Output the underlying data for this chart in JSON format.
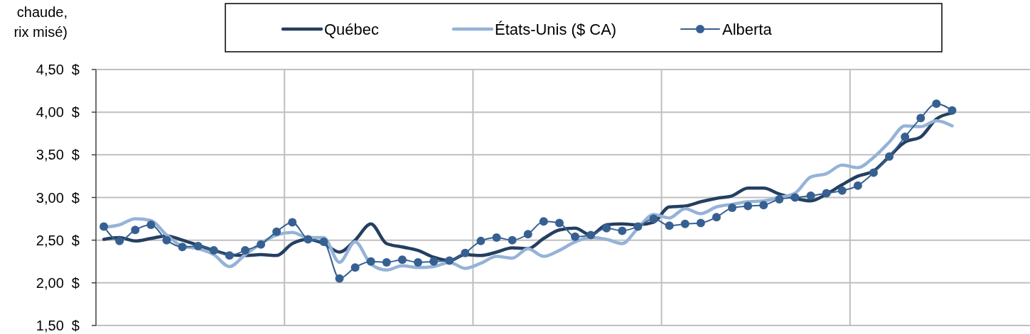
{
  "chart_data": {
    "type": "line",
    "annotations": [
      "chaude,",
      "rix misé)"
    ],
    "categories": [
      null,
      null,
      null,
      null,
      null,
      null,
      null,
      null,
      null,
      null,
      null,
      null,
      null,
      null,
      null,
      null,
      null,
      null,
      null,
      null,
      null,
      null,
      null,
      null,
      null,
      null,
      null,
      null,
      null,
      null,
      null,
      null,
      null,
      null,
      null,
      null,
      null,
      null,
      null,
      null,
      null,
      null,
      null,
      null,
      null,
      null,
      null,
      null,
      null,
      null,
      null,
      null,
      null,
      null,
      null,
      null,
      null,
      null,
      null,
      null
    ],
    "series": [
      {
        "name": "Québec",
        "color": "#243f60",
        "marker": "none",
        "values": [
          2.51,
          2.53,
          2.49,
          2.52,
          2.55,
          2.5,
          2.44,
          2.38,
          2.33,
          2.32,
          2.33,
          2.32,
          2.46,
          2.51,
          2.46,
          2.36,
          2.5,
          2.69,
          2.46,
          2.42,
          2.38,
          2.3,
          2.26,
          2.33,
          2.32,
          2.36,
          2.41,
          2.4,
          2.52,
          2.62,
          2.64,
          2.56,
          2.68,
          2.69,
          2.68,
          2.71,
          2.89,
          2.9,
          2.95,
          2.99,
          3.02,
          3.11,
          3.11,
          3.04,
          2.99,
          2.96,
          3.04,
          3.15,
          3.25,
          3.31,
          3.48,
          3.65,
          3.71,
          3.92,
          3.99,
          null,
          null,
          null,
          null,
          null
        ]
      },
      {
        "name": "États-Unis ($ CA)",
        "color": "#95b3d7",
        "marker": "none",
        "values": [
          2.65,
          2.68,
          2.75,
          2.73,
          2.56,
          2.43,
          2.4,
          2.33,
          2.19,
          2.33,
          2.46,
          2.56,
          2.59,
          2.53,
          2.53,
          2.24,
          2.48,
          2.22,
          2.15,
          2.2,
          2.18,
          2.19,
          2.24,
          2.17,
          2.23,
          2.31,
          2.29,
          2.4,
          2.31,
          2.38,
          2.48,
          2.53,
          2.51,
          2.46,
          2.64,
          2.8,
          2.76,
          2.87,
          2.81,
          2.89,
          2.92,
          2.95,
          2.96,
          3.0,
          3.05,
          3.24,
          3.28,
          3.38,
          3.35,
          3.47,
          3.65,
          3.84,
          3.83,
          3.9,
          3.84,
          null,
          null,
          null,
          null,
          null
        ]
      },
      {
        "name": "Alberta",
        "color": "#376092",
        "marker": "circle",
        "values": [
          2.66,
          2.49,
          2.62,
          2.68,
          2.5,
          2.42,
          2.43,
          2.38,
          2.32,
          2.38,
          2.45,
          2.6,
          2.71,
          2.51,
          2.48,
          2.05,
          2.18,
          2.25,
          2.24,
          2.27,
          2.24,
          2.25,
          2.26,
          2.35,
          2.49,
          2.53,
          2.5,
          2.57,
          2.72,
          2.7,
          2.54,
          2.56,
          2.64,
          2.61,
          2.66,
          2.75,
          2.67,
          2.69,
          2.7,
          2.77,
          2.88,
          2.9,
          2.91,
          2.98,
          3.0,
          3.02,
          3.05,
          3.08,
          3.14,
          3.29,
          3.48,
          3.71,
          3.93,
          4.1,
          4.02,
          null,
          null,
          null,
          null,
          null
        ]
      }
    ],
    "ylim": [
      1.5,
      4.5
    ],
    "yticks": [
      {
        "value": 1.5,
        "label": "1,50  $"
      },
      {
        "value": 2,
        "label": "2,00  $"
      },
      {
        "value": 2.5,
        "label": "2,50  $"
      },
      {
        "value": 3,
        "label": "3,00  $"
      },
      {
        "value": 3.5,
        "label": "3,50  $"
      },
      {
        "value": 4,
        "label": "4,00  $"
      },
      {
        "value": 4.5,
        "label": "4,50  $"
      }
    ],
    "grid": true,
    "legend": "top"
  }
}
